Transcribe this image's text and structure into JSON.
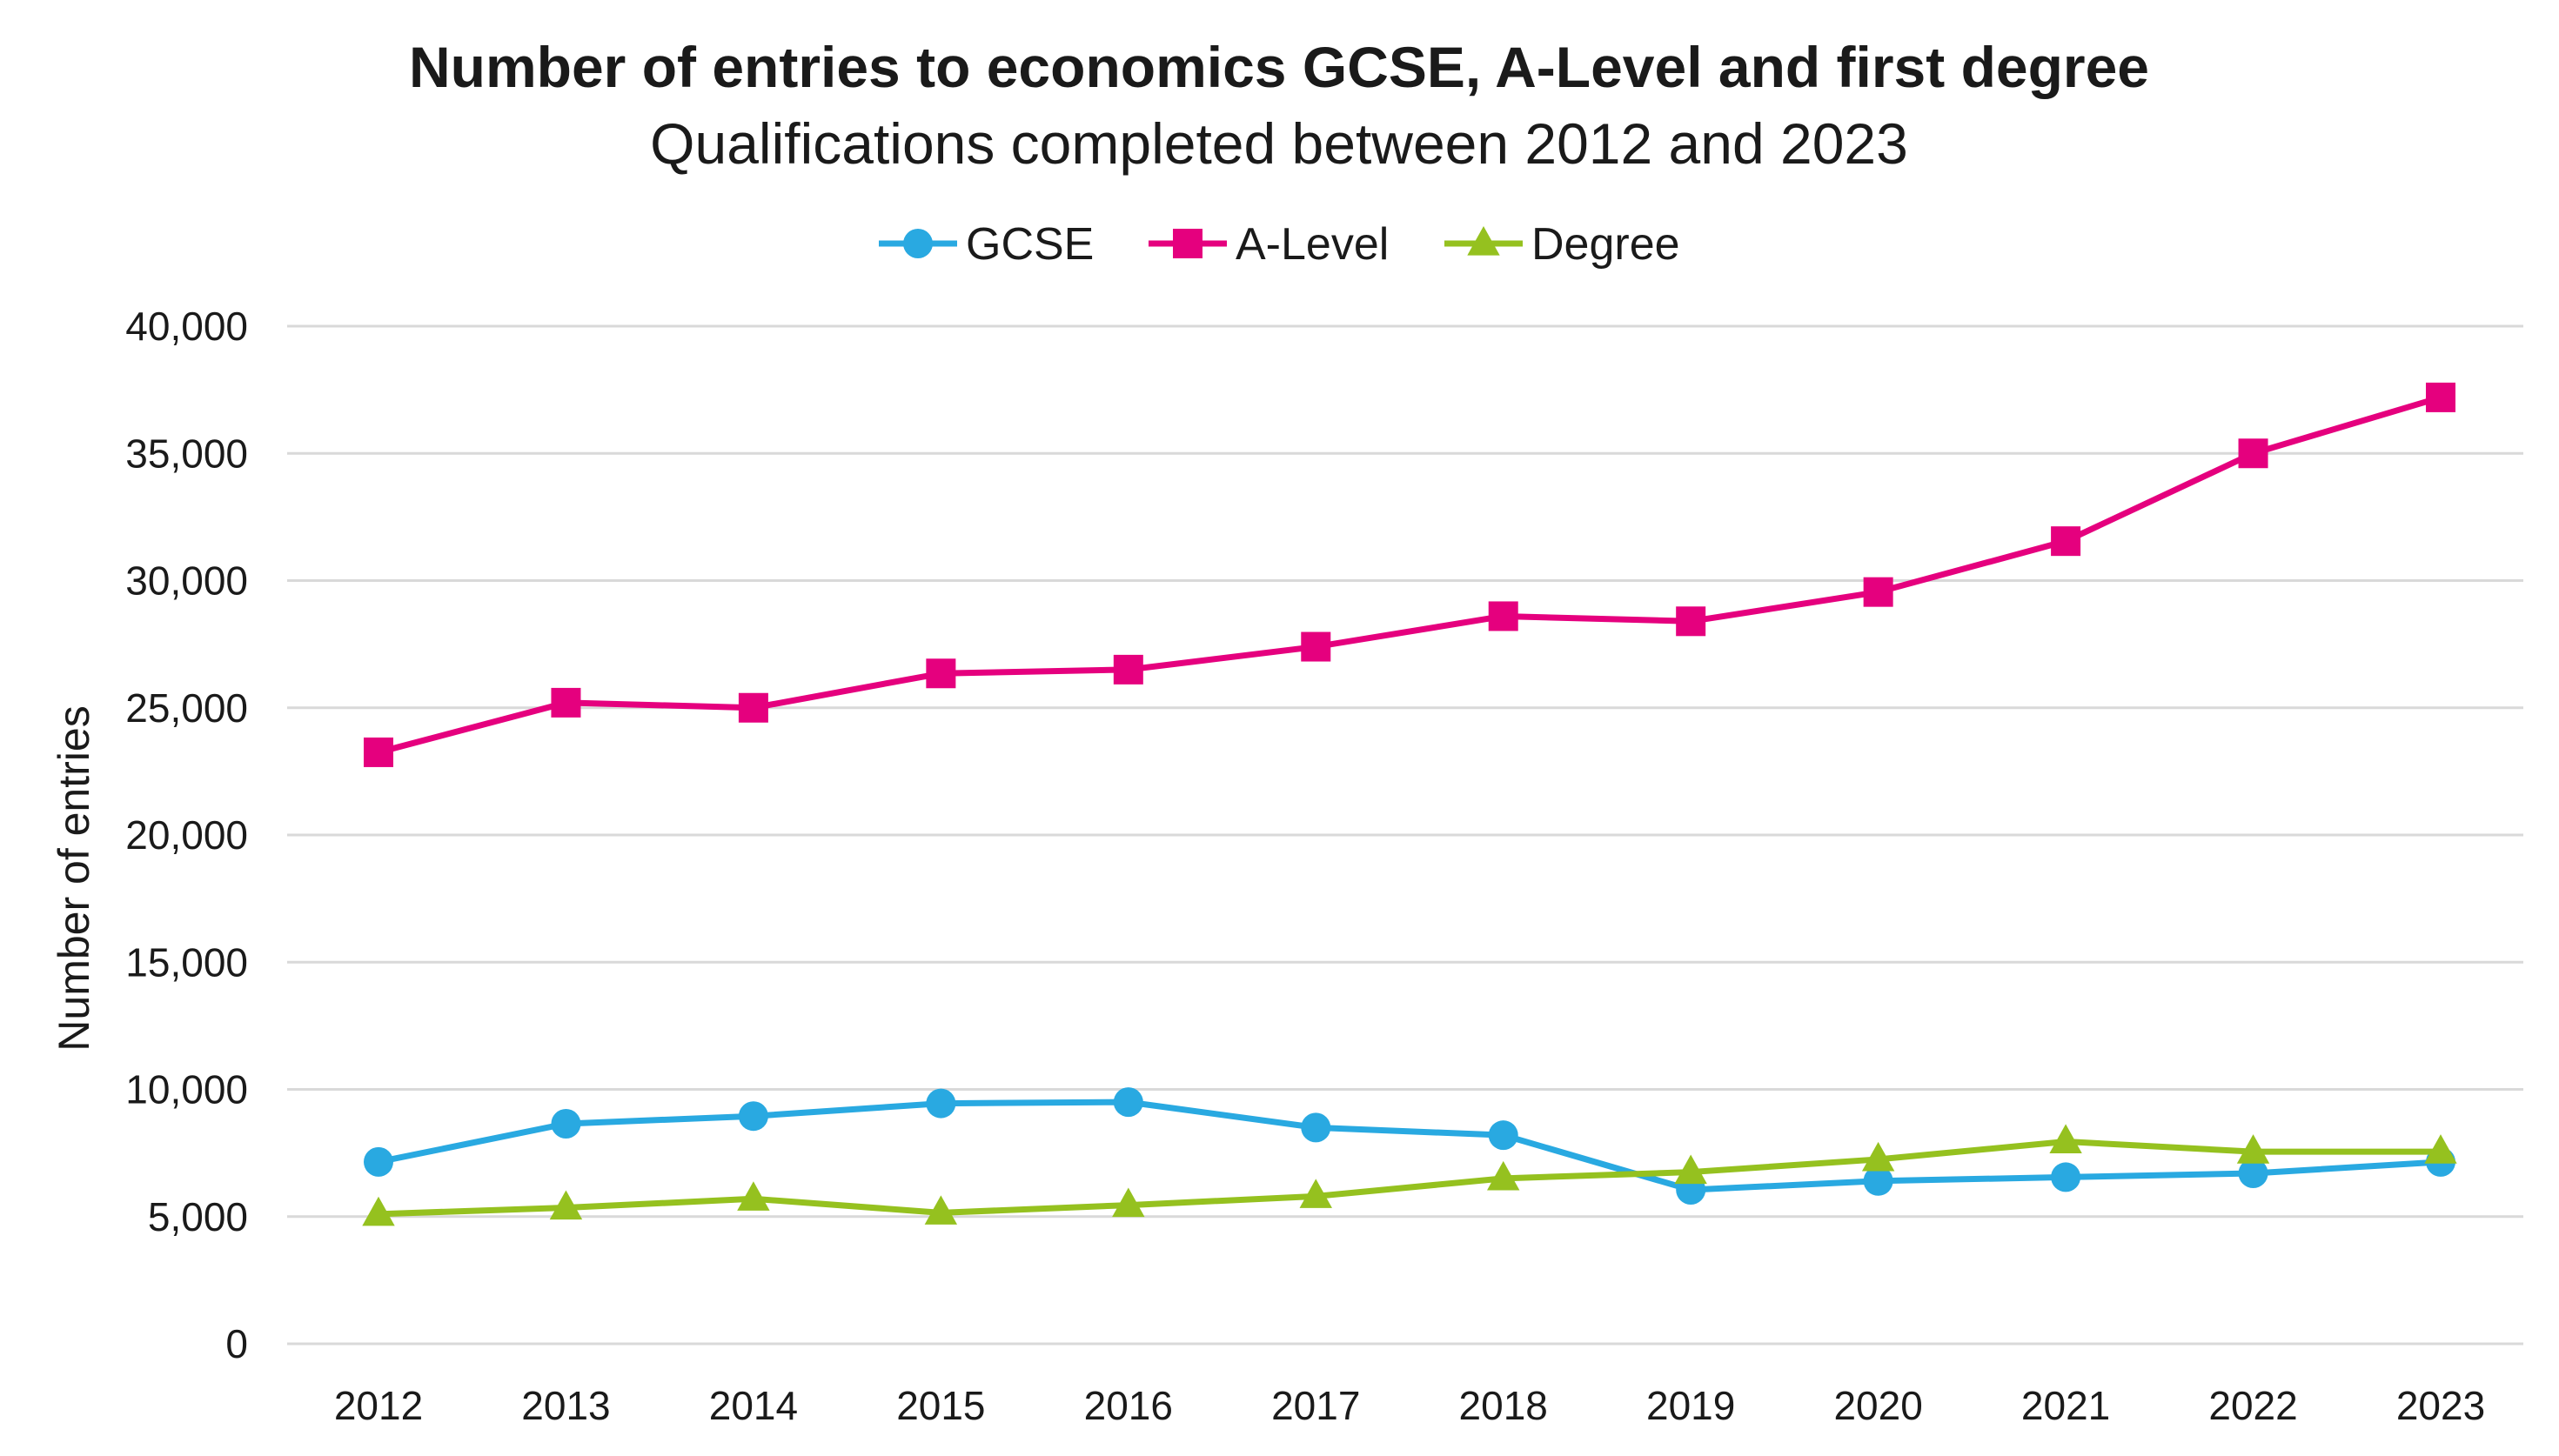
{
  "chart_data": {
    "type": "line",
    "title": "Number of entries to economics GCSE, A-Level and first degree",
    "subtitle": "Qualifications completed between 2012 and 2023",
    "xlabel": "",
    "ylabel": "Number of entries",
    "categories": [
      "2012",
      "2013",
      "2014",
      "2015",
      "2016",
      "2017",
      "2018",
      "2019",
      "2020",
      "2021",
      "2022",
      "2023"
    ],
    "ylim": [
      0,
      40000
    ],
    "y_ticks": [
      0,
      5000,
      10000,
      15000,
      20000,
      25000,
      30000,
      35000,
      40000
    ],
    "y_tick_labels": [
      "0",
      "5,000",
      "10,000",
      "15,000",
      "20,000",
      "25,000",
      "30,000",
      "35,000",
      "40,000"
    ],
    "grid": true,
    "legend_position": "top-center",
    "series": [
      {
        "name": "GCSE",
        "color": "#29A9E1",
        "marker": "circle",
        "values": [
          7150,
          8650,
          8950,
          9450,
          9500,
          8500,
          8200,
          6050,
          6400,
          6550,
          6700,
          7150
        ]
      },
      {
        "name": "A-Level",
        "color": "#E5007E",
        "marker": "square",
        "values": [
          23250,
          25200,
          25000,
          26350,
          26500,
          27400,
          28600,
          28400,
          29550,
          31550,
          35000,
          37200
        ]
      },
      {
        "name": "Degree",
        "color": "#95C11F",
        "marker": "triangle",
        "values": [
          5100,
          5350,
          5700,
          5150,
          5450,
          5800,
          6500,
          6750,
          7250,
          7950,
          7550,
          7550
        ]
      }
    ]
  }
}
